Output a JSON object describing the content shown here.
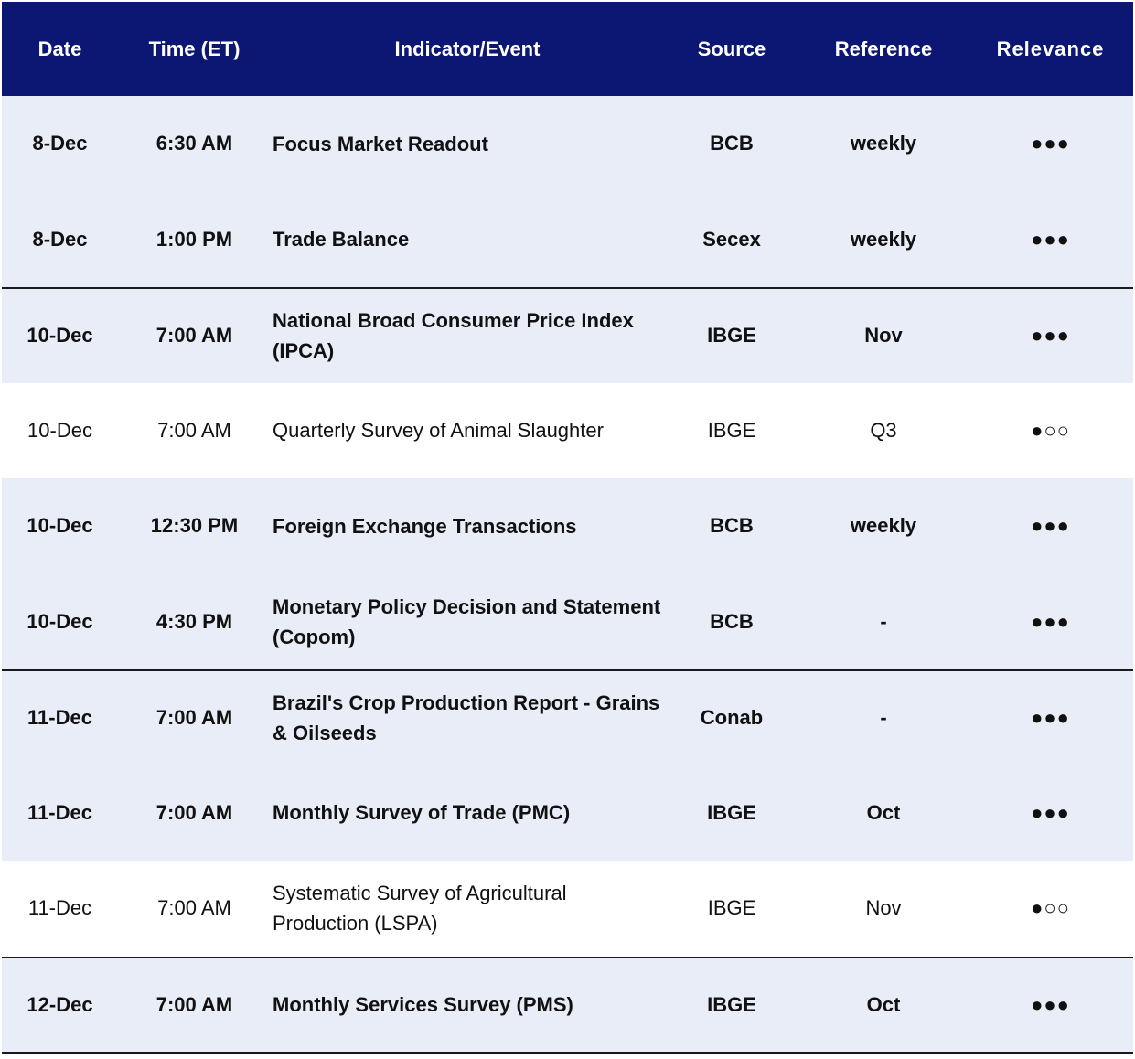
{
  "header": {
    "date": "Date",
    "time": "Time (ET)",
    "indicator": "Indicator/Event",
    "source": "Source",
    "reference": "Reference",
    "relevance": "Relevance"
  },
  "rows": [
    {
      "date": "8-Dec",
      "time": "6:30 AM",
      "indicator": "Focus Market Readout",
      "source": "BCB",
      "reference": "weekly",
      "relevance": "●●●"
    },
    {
      "date": "8-Dec",
      "time": "1:00 PM",
      "indicator": "Trade Balance",
      "source": "Secex",
      "reference": "weekly",
      "relevance": "●●●"
    },
    {
      "date": "10-Dec",
      "time": "7:00 AM",
      "indicator": "National Broad Consumer Price Index (IPCA)",
      "source": "IBGE",
      "reference": "Nov",
      "relevance": "●●●"
    },
    {
      "date": "10-Dec",
      "time": "7:00 AM",
      "indicator": "Quarterly Survey of Animal Slaughter",
      "source": "IBGE",
      "reference": "Q3",
      "relevance": "●○○"
    },
    {
      "date": "10-Dec",
      "time": "12:30 PM",
      "indicator": "Foreign Exchange Transactions",
      "source": "BCB",
      "reference": "weekly",
      "relevance": "●●●"
    },
    {
      "date": "10-Dec",
      "time": "4:30 PM",
      "indicator": "Monetary Policy Decision and Statement (Copom)",
      "source": "BCB",
      "reference": "-",
      "relevance": "●●●"
    },
    {
      "date": "11-Dec",
      "time": "7:00 AM",
      "indicator": "Brazil's Crop Production Report - Grains & Oilseeds",
      "source": "Conab",
      "reference": "-",
      "relevance": "●●●"
    },
    {
      "date": "11-Dec",
      "time": "7:00 AM",
      "indicator": "Monthly Survey of Trade (PMC)",
      "source": "IBGE",
      "reference": "Oct",
      "relevance": "●●●"
    },
    {
      "date": "11-Dec",
      "time": "7:00 AM",
      "indicator": "Systematic Survey of Agricultural Production (LSPA)",
      "source": "IBGE",
      "reference": "Nov",
      "relevance": "●○○"
    },
    {
      "date": "12-Dec",
      "time": "7:00 AM",
      "indicator": "Monthly Services Survey (PMS)",
      "source": "IBGE",
      "reference": "Oct",
      "relevance": "●●●"
    }
  ]
}
